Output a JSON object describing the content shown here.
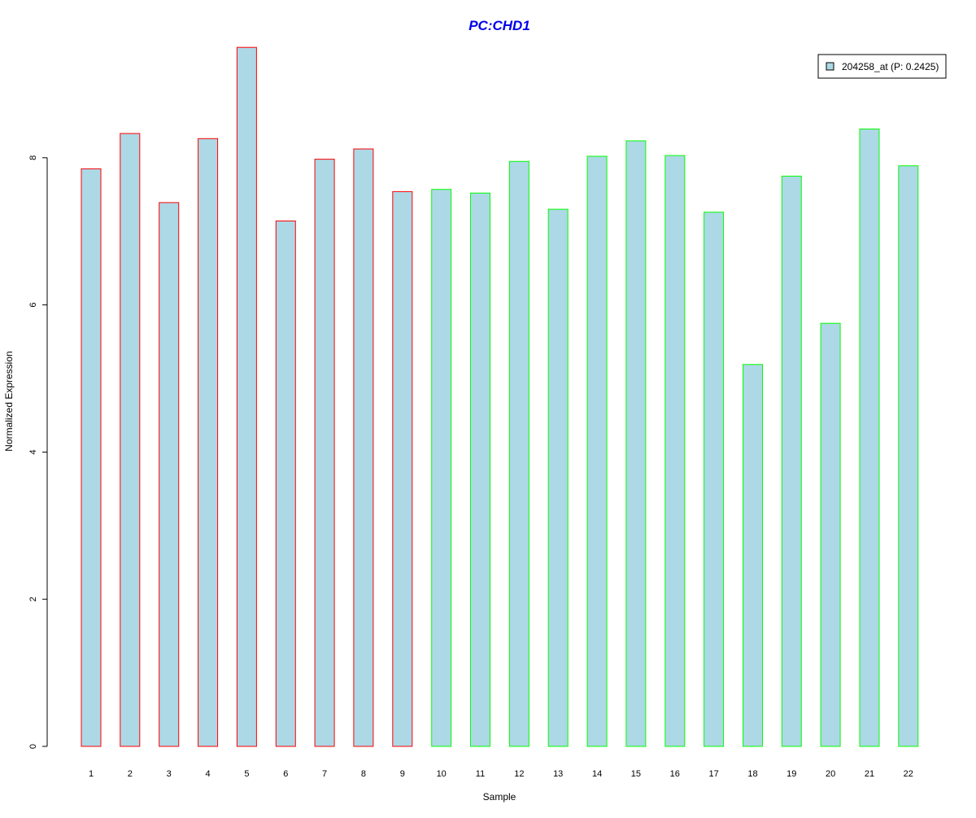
{
  "chart_data": {
    "type": "bar",
    "title": "PC:CHD1",
    "xlabel": "Sample",
    "ylabel": "Normalized Expression",
    "categories": [
      "1",
      "2",
      "3",
      "4",
      "5",
      "6",
      "7",
      "8",
      "9",
      "10",
      "11",
      "12",
      "13",
      "14",
      "15",
      "16",
      "17",
      "18",
      "19",
      "20",
      "21",
      "22"
    ],
    "series": [
      {
        "name": "204258_at (P: 0.2425)",
        "values": [
          7.85,
          8.33,
          7.39,
          8.26,
          9.5,
          7.14,
          7.98,
          8.12,
          7.54,
          7.57,
          7.52,
          7.95,
          7.3,
          8.02,
          8.23,
          8.03,
          7.26,
          5.19,
          7.75,
          5.75,
          8.39,
          7.89
        ]
      }
    ],
    "group_borders": [
      "red",
      "red",
      "red",
      "red",
      "red",
      "red",
      "red",
      "red",
      "red",
      "green",
      "green",
      "green",
      "green",
      "green",
      "green",
      "green",
      "green",
      "green",
      "green",
      "green",
      "green",
      "green"
    ],
    "ylim": [
      0,
      9.5
    ],
    "yticks": [
      0,
      2,
      4,
      6,
      8
    ],
    "grid": false,
    "legend_position": "top-right",
    "colors": {
      "bar_fill": "#add8e6",
      "red": "#ff0000",
      "green": "#00ff00",
      "title": "#0000ee",
      "axis": "#000000"
    }
  }
}
